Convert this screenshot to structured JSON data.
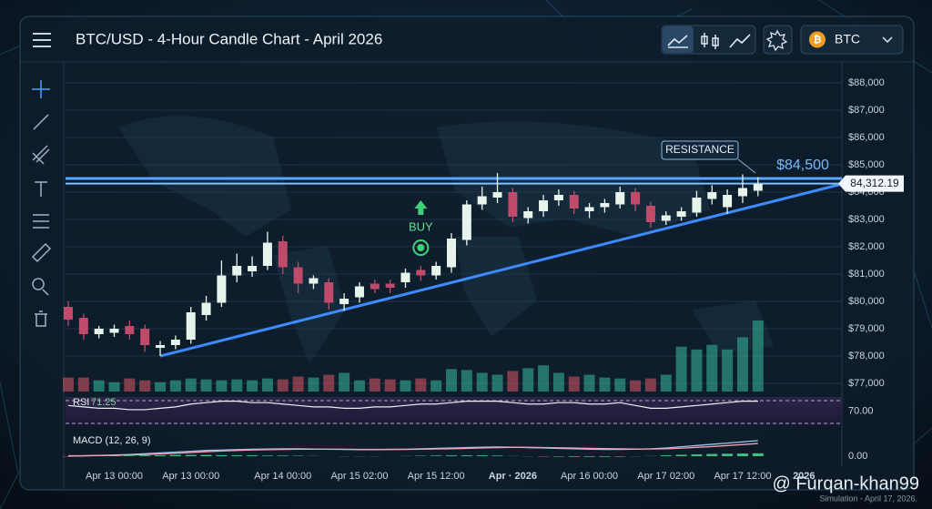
{
  "ui": {
    "ticker": "BTC",
    "watermark": "@ Furqan-khan99",
    "footnote": "Simulation - April 17, 2026."
  },
  "chart_data": [
    {
      "type": "candlestick",
      "title": "BTC/USD - 4-Hour Candle Chart - April 2026",
      "categories": [
        null,
        null,
        null,
        "Apr 13 00:00",
        null,
        null,
        null,
        null,
        "Apr 13 00:00",
        null,
        null,
        null,
        null,
        null,
        "Apr 14 00:00",
        null,
        null,
        null,
        null,
        "Apr 15 02:00",
        null,
        null,
        null,
        null,
        "Apr 15 12:00",
        null,
        null,
        null,
        null,
        "Apr · 2026",
        null,
        null,
        null,
        null,
        "Apr 16 00:00",
        null,
        null,
        null,
        null,
        "Apr 17 02:00",
        null,
        null,
        null,
        null,
        "Apr 17 12:00",
        null,
        null,
        null,
        "2026",
        null
      ],
      "open": [
        79800,
        79400,
        78800,
        78850,
        79100,
        79000,
        78300,
        78400,
        78600,
        79500,
        79950,
        80950,
        81100,
        81300,
        82200,
        81250,
        80650,
        80700,
        79900,
        80150,
        80650,
        80650,
        80700,
        81150,
        80950,
        81250,
        82250,
        83550,
        83800,
        84000,
        83050,
        83300,
        83700,
        83900,
        83300,
        83450,
        83550,
        84000,
        83500,
        82950,
        83100,
        83250,
        83750,
        83450,
        83850,
        84050,
        null,
        null,
        null,
        null
      ],
      "high": [
        80000,
        79550,
        79100,
        79150,
        79300,
        79150,
        78550,
        78750,
        79800,
        80200,
        81500,
        81750,
        81650,
        82550,
        82400,
        81450,
        80950,
        80850,
        80300,
        80700,
        80800,
        80800,
        81200,
        81300,
        81450,
        82500,
        83700,
        84200,
        84700,
        84150,
        83450,
        83900,
        84100,
        84050,
        83600,
        83750,
        84200,
        84150,
        83650,
        83300,
        83450,
        84050,
        84250,
        84100,
        84650,
        84550,
        null,
        null,
        null,
        null
      ],
      "low": [
        79100,
        78600,
        78650,
        78700,
        78600,
        78150,
        78000,
        78250,
        78450,
        79300,
        79800,
        80700,
        80900,
        81150,
        81000,
        80300,
        80450,
        79700,
        79650,
        79950,
        80300,
        80300,
        80500,
        80750,
        80800,
        81050,
        82050,
        83350,
        83600,
        82900,
        82850,
        83100,
        83500,
        83200,
        83050,
        83250,
        83400,
        83300,
        82700,
        82800,
        82950,
        83100,
        83550,
        83200,
        83600,
        83850,
        null,
        null,
        null,
        null
      ],
      "close": [
        79330,
        78800,
        79000,
        79000,
        78800,
        78400,
        78400,
        78600,
        79600,
        79950,
        80950,
        81300,
        81300,
        82150,
        81250,
        80650,
        80850,
        79950,
        80100,
        80550,
        80450,
        80500,
        81050,
        80950,
        81300,
        82300,
        83550,
        83850,
        84000,
        83100,
        83300,
        83700,
        83900,
        83400,
        83450,
        83600,
        84000,
        83550,
        82900,
        83150,
        83300,
        83800,
        84000,
        83900,
        84150,
        84300,
        null,
        null,
        null,
        null
      ],
      "volume": [
        15,
        15,
        12,
        10,
        14,
        12,
        10,
        12,
        14,
        13,
        12,
        13,
        12,
        14,
        13,
        16,
        15,
        18,
        20,
        12,
        14,
        13,
        12,
        14,
        12,
        24,
        23,
        20,
        18,
        22,
        25,
        28,
        20,
        16,
        18,
        15,
        14,
        12,
        14,
        18,
        48,
        45,
        50,
        45,
        58,
        76,
        null,
        null,
        null,
        null
      ],
      "up_color": "#e6f4ec",
      "down_color": "#c04a6a",
      "ylim": [
        76700,
        88700
      ],
      "yticks": [
        {
          "value": 77000,
          "label": "$77,000"
        },
        {
          "value": 78000,
          "label": "$78,000"
        },
        {
          "value": 79000,
          "label": "$79,000"
        },
        {
          "value": 80000,
          "label": "$80,000"
        },
        {
          "value": 81000,
          "label": "$81,000"
        },
        {
          "value": 82000,
          "label": "$82,000"
        },
        {
          "value": 83000,
          "label": "$83,000"
        },
        {
          "value": 84000,
          "label": "$84,000"
        },
        {
          "value": 85000,
          "label": "$85,000"
        },
        {
          "value": 86000,
          "label": "$86,000"
        },
        {
          "value": 87000,
          "label": "$87,000"
        },
        {
          "value": 88000,
          "label": "$88,000"
        }
      ],
      "grid": true,
      "resistance": {
        "value": 84500,
        "label": "$84,500",
        "text": "RESISTANCE"
      },
      "last_price": {
        "value": 84312.19,
        "label": "84,312.19"
      },
      "signal": {
        "index": 23,
        "label": "BUY"
      },
      "trendline": {
        "x": [
          6,
          50.5
        ],
        "y": [
          78000,
          84300
        ]
      }
    },
    {
      "type": "line",
      "label": "RSI",
      "current": 71.25,
      "color": "#e8eef6",
      "values": [
        74,
        73,
        72,
        72,
        71,
        71,
        72,
        73,
        75,
        76,
        77,
        77,
        76,
        76,
        75,
        74,
        73,
        73,
        72,
        72,
        73,
        73,
        74,
        75,
        75,
        76,
        77,
        77,
        77,
        76,
        75,
        75,
        76,
        76,
        75,
        75,
        76,
        74,
        72,
        72,
        73,
        74,
        75,
        76,
        77,
        77,
        null,
        null,
        null,
        null
      ],
      "ylim": [
        60,
        80
      ],
      "yticks": [
        {
          "value": 70,
          "label": "70.00"
        }
      ]
    },
    {
      "type": "macd",
      "label": "MACD (12, 26, 9)",
      "series": [
        {
          "color": "#9cc4f0",
          "values": [
            0,
            2,
            4,
            6,
            8,
            12,
            16,
            20,
            24,
            28,
            30,
            32,
            34,
            35,
            36,
            36,
            35,
            34,
            33,
            32,
            32,
            33,
            34,
            36,
            38,
            40,
            42,
            44,
            45,
            44,
            42,
            40,
            38,
            36,
            34,
            33,
            33,
            34,
            36,
            40,
            46,
            52,
            58,
            64,
            70,
            76,
            null,
            null,
            null,
            null
          ]
        },
        {
          "color": "#f0a0b0",
          "values": [
            2,
            2,
            3,
            4,
            6,
            8,
            11,
            14,
            18,
            22,
            25,
            28,
            30,
            32,
            33,
            34,
            34,
            34,
            34,
            33,
            33,
            33,
            33,
            34,
            35,
            36,
            38,
            40,
            42,
            43,
            43,
            42,
            41,
            40,
            38,
            37,
            36,
            35,
            35,
            36,
            39,
            43,
            47,
            52,
            57,
            62,
            null,
            null,
            null,
            null
          ]
        }
      ],
      "histogram": [
        -2,
        0,
        1,
        2,
        2,
        4,
        5,
        6,
        6,
        6,
        5,
        4,
        4,
        3,
        3,
        2,
        1,
        0,
        -1,
        -1,
        -1,
        0,
        1,
        2,
        3,
        4,
        4,
        4,
        3,
        1,
        -1,
        -2,
        -3,
        -4,
        -4,
        -4,
        -3,
        -1,
        1,
        4,
        7,
        9,
        11,
        12,
        13,
        14,
        null,
        null,
        null,
        null
      ],
      "ylim": [
        -40,
        120
      ],
      "yticks": [
        {
          "value": 0,
          "label": "0.00"
        }
      ]
    }
  ]
}
